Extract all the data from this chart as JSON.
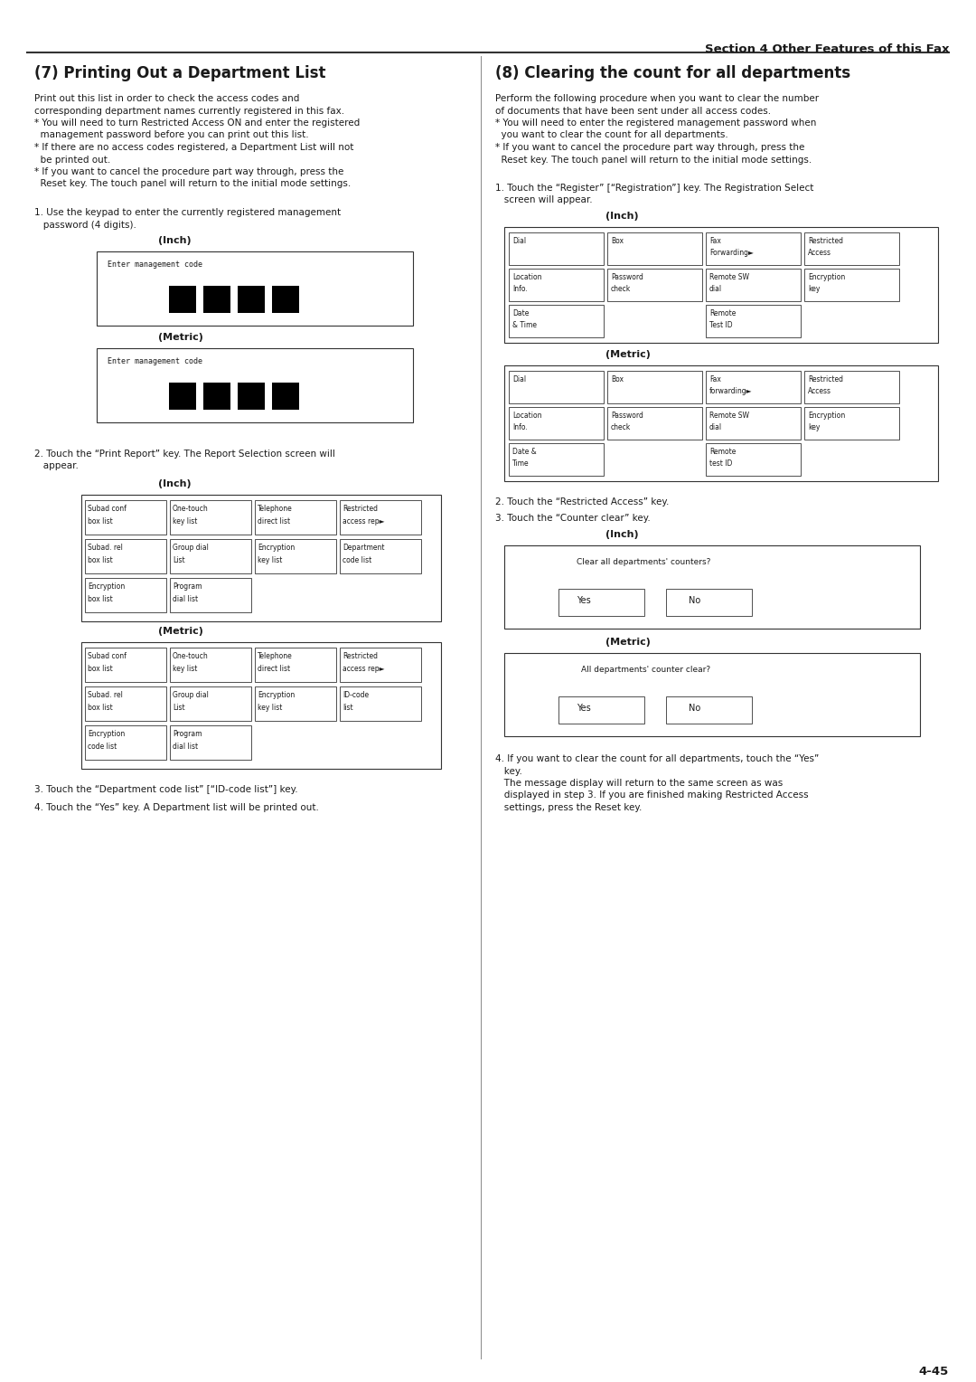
{
  "page_width": 10.8,
  "page_height": 15.28,
  "bg_color": "#ffffff",
  "header_text": "Section 4 Other Features of this Fax",
  "footer_text": "4-45",
  "left_title": "(7) Printing Out a Department List",
  "left_intro_lines": [
    "Print out this list in order to check the access codes and",
    "corresponding department names currently registered in this fax."
  ],
  "left_bullets": [
    "* You will need to turn Restricted Access ON and enter the registered",
    "  management password before you can print out this list.",
    "* If there are no access codes registered, a Department List will not",
    "  be printed out.",
    "* If you want to cancel the procedure part way through, press the",
    "  Reset key. The touch panel will return to the initial mode settings."
  ],
  "left_step1_lines": [
    "1. Use the keypad to enter the currently registered management",
    "   password (4 digits)."
  ],
  "left_step2_lines": [
    "2. Touch the “Print Report” key. The Report Selection screen will",
    "   appear."
  ],
  "left_step3": "3. Touch the “Department code list” [“ID-code list”] key.",
  "left_step4": "4. Touch the “Yes” key. A Department list will be printed out.",
  "right_title": "(8) Clearing the count for all departments",
  "right_intro_lines": [
    "Perform the following procedure when you want to clear the number",
    "of documents that have been sent under all access codes."
  ],
  "right_bullets": [
    "* You will need to enter the registered management password when",
    "  you want to clear the count for all departments.",
    "* If you want to cancel the procedure part way through, press the",
    "  Reset key. The touch panel will return to the initial mode settings."
  ],
  "right_step1_lines": [
    "1. Touch the “Register” [“Registration”] key. The Registration Select",
    "   screen will appear."
  ],
  "right_step2": "2. Touch the “Restricted Access” key.",
  "right_step3": "3. Touch the “Counter clear” key.",
  "right_step4_lines": [
    "4. If you want to clear the count for all departments, touch the “Yes”",
    "   key.",
    "   The message display will return to the same screen as was",
    "   displayed in step 3. If you are finished making Restricted Access",
    "   settings, press the Reset key."
  ]
}
